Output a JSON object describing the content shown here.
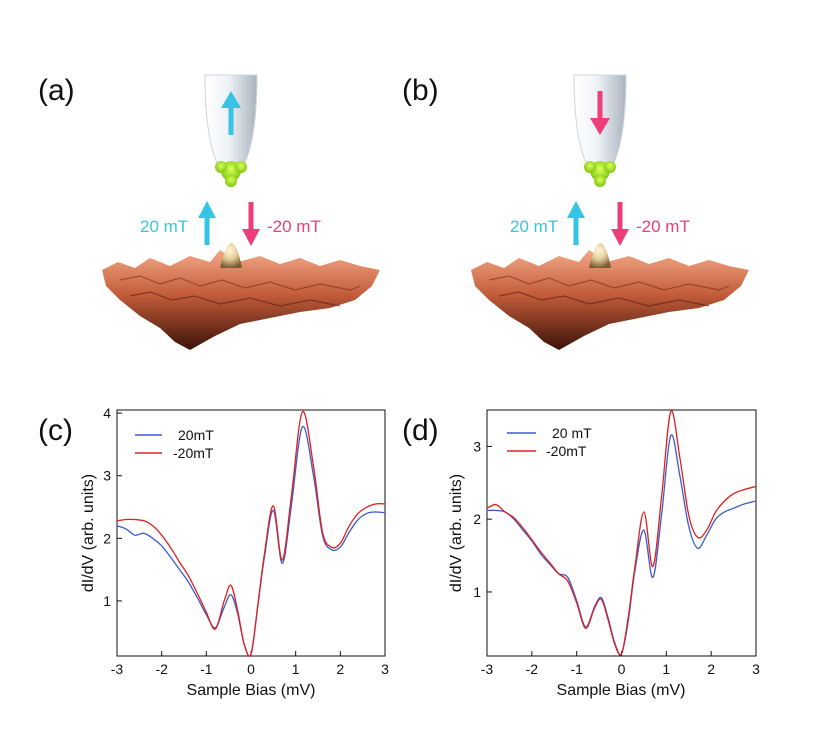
{
  "colors": {
    "up": "#36c4e6",
    "down": "#ec3f7a",
    "tip": "#e6ecf2",
    "tip_apex": "#9bdd1c",
    "surface_dark": "#3b1208",
    "surface_mid": "#b85332",
    "surface_light": "#f2a37f",
    "peak": "#e4cf9a",
    "blue_trace": "#3a5ccf",
    "red_trace": "#e02020"
  },
  "icons": {
    "tip": "stm-tip-icon",
    "spin_up": "arrow-up-icon",
    "spin_down": "arrow-down-icon",
    "surface": "surface-topography-image"
  },
  "panel_a": {
    "label": "(a)",
    "tip_spin": "up",
    "field_up_label": "20 mT",
    "field_down_label": "-20 mT"
  },
  "panel_b": {
    "label": "(b)",
    "tip_spin": "down",
    "field_up_label": "20 mT",
    "field_down_label": "-20 mT"
  },
  "chart_data": [
    {
      "id": "c",
      "label": "(c)",
      "type": "line",
      "xlabel": "Sample Bias (mV)",
      "ylabel": "dI/dV (arb. units)",
      "xlim": [
        -3,
        3
      ],
      "ylim": [
        0.12,
        4.05
      ],
      "xticks": [
        -3,
        -2,
        -1,
        0,
        1,
        2,
        3
      ],
      "yticks": [
        1,
        2,
        3,
        4
      ],
      "legend_position": "top-left",
      "x": [
        -3.0,
        -2.8,
        -2.6,
        -2.4,
        -2.2,
        -2.0,
        -1.8,
        -1.6,
        -1.4,
        -1.2,
        -1.0,
        -0.8,
        -0.6,
        -0.45,
        -0.3,
        -0.15,
        0.0,
        0.15,
        0.3,
        0.5,
        0.7,
        0.9,
        1.15,
        1.4,
        1.6,
        1.8,
        2.0,
        2.2,
        2.4,
        2.6,
        2.8,
        3.0
      ],
      "series": [
        {
          "name": "20mT",
          "color": "#3a5ccf",
          "values": [
            2.2,
            2.15,
            2.05,
            2.08,
            2.0,
            1.88,
            1.7,
            1.5,
            1.3,
            1.05,
            0.78,
            0.57,
            0.9,
            1.1,
            0.8,
            0.3,
            0.15,
            0.9,
            1.7,
            2.45,
            1.6,
            2.5,
            3.78,
            3.0,
            2.05,
            1.82,
            1.86,
            2.1,
            2.3,
            2.4,
            2.42,
            2.41
          ]
        },
        {
          "name": "-20mT",
          "color": "#e02020",
          "values": [
            2.28,
            2.3,
            2.3,
            2.28,
            2.2,
            2.05,
            1.85,
            1.62,
            1.4,
            1.12,
            0.82,
            0.55,
            1.0,
            1.25,
            0.85,
            0.3,
            0.15,
            0.92,
            1.75,
            2.52,
            1.65,
            2.65,
            4.02,
            3.15,
            2.1,
            1.86,
            1.92,
            2.2,
            2.4,
            2.5,
            2.55,
            2.55
          ]
        }
      ]
    },
    {
      "id": "d",
      "label": "(d)",
      "type": "line",
      "xlabel": "Sample Bias (mV)",
      "ylabel": "dI/dV (arb. units)",
      "xlim": [
        -3,
        3
      ],
      "ylim": [
        0.12,
        3.5
      ],
      "xticks": [
        -3,
        -2,
        -1,
        0,
        1,
        2,
        3
      ],
      "yticks": [
        1,
        2,
        3
      ],
      "legend_position": "top-left",
      "x": [
        -3.0,
        -2.8,
        -2.6,
        -2.4,
        -2.2,
        -2.0,
        -1.8,
        -1.6,
        -1.4,
        -1.2,
        -1.0,
        -0.8,
        -0.6,
        -0.45,
        -0.3,
        -0.15,
        0.0,
        0.15,
        0.3,
        0.5,
        0.7,
        0.9,
        1.1,
        1.3,
        1.5,
        1.7,
        1.9,
        2.1,
        2.3,
        2.5,
        2.7,
        3.0
      ],
      "series": [
        {
          "name": "20 mT",
          "color": "#3a5ccf",
          "values": [
            2.12,
            2.12,
            2.1,
            2.0,
            1.85,
            1.7,
            1.52,
            1.38,
            1.25,
            1.2,
            0.88,
            0.52,
            0.8,
            0.92,
            0.65,
            0.3,
            0.15,
            0.6,
            1.3,
            1.85,
            1.2,
            2.1,
            3.15,
            2.6,
            1.9,
            1.6,
            1.78,
            2.0,
            2.1,
            2.15,
            2.2,
            2.25
          ]
        },
        {
          "name": "-20mT",
          "color": "#e02020",
          "values": [
            2.15,
            2.2,
            2.1,
            2.02,
            1.88,
            1.72,
            1.55,
            1.4,
            1.25,
            1.15,
            0.85,
            0.5,
            0.78,
            0.9,
            0.62,
            0.28,
            0.15,
            0.65,
            1.35,
            2.1,
            1.35,
            2.35,
            3.48,
            2.85,
            2.05,
            1.75,
            1.85,
            2.1,
            2.25,
            2.35,
            2.4,
            2.45
          ]
        }
      ]
    }
  ]
}
